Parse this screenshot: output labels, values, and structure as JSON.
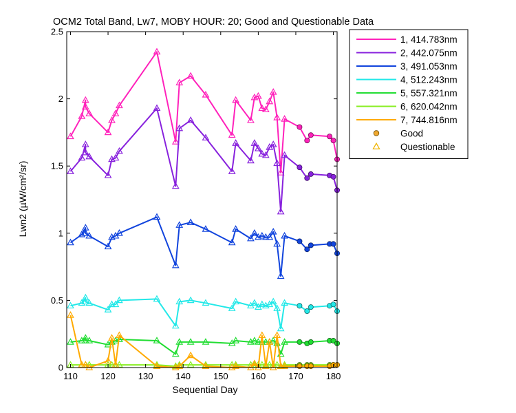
{
  "chart_data": {
    "type": "line",
    "title": "OCM2 Total Band, Lw7, MOBY HOUR: 20;  Good and Questionable Data",
    "xlabel": "Sequential Day",
    "ylabel": "Lwn2 (µW/cm²/sr)",
    "xlim": [
      109,
      181
    ],
    "ylim": [
      0,
      2.5
    ],
    "xticks": [
      110,
      120,
      130,
      140,
      150,
      160,
      170,
      180
    ],
    "yticks": [
      0,
      0.5,
      1,
      1.5,
      2,
      2.5
    ],
    "grid": false,
    "legend_position": "outside-top-right",
    "marker_legend": [
      {
        "label": "Good",
        "marker": "circle",
        "color": "#f0a830"
      },
      {
        "label": "Questionable",
        "marker": "triangle",
        "color": "#f0b400"
      }
    ],
    "series": [
      {
        "name": "1, 414.783nm",
        "color": "#ff22bb",
        "x": [
          110,
          113,
          114,
          114,
          115,
          120,
          121,
          122,
          123,
          133,
          138,
          139,
          142,
          146,
          153,
          154,
          158,
          159,
          160,
          161,
          162,
          163,
          164,
          165,
          166,
          167,
          171,
          173,
          174,
          179,
          180,
          181
        ],
        "y": [
          1.72,
          1.87,
          1.99,
          1.94,
          1.89,
          1.75,
          1.84,
          1.89,
          1.95,
          2.35,
          1.68,
          2.12,
          2.17,
          2.03,
          1.73,
          1.99,
          1.84,
          2.01,
          2.02,
          1.93,
          1.92,
          1.98,
          2.05,
          1.86,
          1.45,
          1.85,
          1.79,
          1.69,
          1.73,
          1.72,
          1.69,
          1.55
        ],
        "q": [
          1,
          1,
          1,
          1,
          1,
          1,
          1,
          1,
          1,
          1,
          1,
          1,
          1,
          1,
          1,
          1,
          1,
          1,
          1,
          1,
          1,
          1,
          1,
          1,
          1,
          1,
          0,
          0,
          0,
          0,
          0,
          0
        ]
      },
      {
        "name": "2, 442.075nm",
        "color": "#8822dd",
        "x": [
          110,
          113,
          114,
          114,
          115,
          120,
          121,
          122,
          123,
          133,
          138,
          139,
          142,
          146,
          153,
          154,
          158,
          159,
          160,
          161,
          162,
          163,
          164,
          165,
          166,
          167,
          171,
          173,
          174,
          179,
          180,
          181
        ],
        "y": [
          1.46,
          1.56,
          1.66,
          1.6,
          1.57,
          1.43,
          1.55,
          1.56,
          1.61,
          1.93,
          1.35,
          1.78,
          1.84,
          1.71,
          1.46,
          1.67,
          1.54,
          1.67,
          1.63,
          1.59,
          1.58,
          1.64,
          1.66,
          1.52,
          1.16,
          1.58,
          1.49,
          1.41,
          1.44,
          1.43,
          1.42,
          1.32
        ],
        "q": [
          1,
          1,
          1,
          1,
          1,
          1,
          1,
          1,
          1,
          1,
          1,
          1,
          1,
          1,
          1,
          1,
          1,
          1,
          1,
          1,
          1,
          1,
          1,
          1,
          1,
          1,
          0,
          0,
          0,
          0,
          0,
          0
        ]
      },
      {
        "name": "3, 491.053nm",
        "color": "#1144dd",
        "x": [
          110,
          113,
          114,
          114,
          115,
          120,
          121,
          122,
          123,
          133,
          138,
          139,
          142,
          146,
          153,
          154,
          158,
          159,
          160,
          161,
          162,
          163,
          164,
          165,
          166,
          167,
          171,
          173,
          174,
          179,
          180,
          181
        ],
        "y": [
          0.93,
          0.99,
          1.04,
          1.0,
          0.98,
          0.9,
          0.97,
          0.98,
          1.0,
          1.12,
          0.76,
          1.06,
          1.08,
          1.03,
          0.93,
          1.03,
          0.96,
          1.0,
          0.97,
          0.98,
          0.97,
          0.97,
          1.01,
          0.92,
          0.68,
          0.98,
          0.94,
          0.88,
          0.91,
          0.92,
          0.92,
          0.85
        ],
        "q": [
          1,
          1,
          1,
          1,
          1,
          1,
          1,
          1,
          1,
          1,
          1,
          1,
          1,
          1,
          1,
          1,
          1,
          1,
          1,
          1,
          1,
          1,
          1,
          1,
          1,
          1,
          0,
          0,
          0,
          0,
          0,
          0
        ]
      },
      {
        "name": "4, 512.243nm",
        "color": "#22e8e8",
        "x": [
          110,
          113,
          114,
          114,
          115,
          120,
          121,
          122,
          123,
          133,
          138,
          139,
          142,
          146,
          153,
          154,
          158,
          159,
          160,
          161,
          162,
          163,
          164,
          165,
          166,
          167,
          171,
          173,
          174,
          179,
          180,
          181
        ],
        "y": [
          0.46,
          0.48,
          0.52,
          0.49,
          0.48,
          0.43,
          0.47,
          0.47,
          0.5,
          0.51,
          0.31,
          0.49,
          0.5,
          0.48,
          0.44,
          0.49,
          0.46,
          0.48,
          0.45,
          0.47,
          0.46,
          0.47,
          0.49,
          0.44,
          0.29,
          0.48,
          0.46,
          0.42,
          0.45,
          0.46,
          0.47,
          0.42
        ],
        "q": [
          1,
          1,
          1,
          1,
          1,
          1,
          1,
          1,
          1,
          1,
          1,
          1,
          1,
          1,
          1,
          1,
          1,
          1,
          1,
          1,
          1,
          1,
          1,
          1,
          1,
          1,
          0,
          0,
          0,
          0,
          0,
          0
        ]
      },
      {
        "name": "5, 557.321nm",
        "color": "#22dd33",
        "x": [
          110,
          113,
          114,
          114,
          115,
          120,
          121,
          122,
          123,
          133,
          138,
          139,
          142,
          146,
          153,
          154,
          158,
          159,
          160,
          161,
          162,
          163,
          164,
          165,
          166,
          167,
          171,
          173,
          174,
          179,
          180,
          181
        ],
        "y": [
          0.19,
          0.2,
          0.22,
          0.2,
          0.2,
          0.17,
          0.19,
          0.2,
          0.21,
          0.2,
          0.1,
          0.19,
          0.19,
          0.19,
          0.18,
          0.2,
          0.19,
          0.2,
          0.19,
          0.19,
          0.19,
          0.19,
          0.2,
          0.18,
          0.1,
          0.19,
          0.19,
          0.18,
          0.19,
          0.2,
          0.2,
          0.18
        ],
        "q": [
          1,
          1,
          1,
          1,
          1,
          1,
          1,
          1,
          1,
          1,
          1,
          1,
          1,
          1,
          1,
          1,
          1,
          1,
          1,
          1,
          1,
          1,
          1,
          1,
          1,
          1,
          0,
          0,
          0,
          0,
          0,
          0
        ]
      },
      {
        "name": "6, 620.042nm",
        "color": "#88ee22",
        "x": [
          110,
          113,
          114,
          114,
          115,
          120,
          121,
          122,
          123,
          133,
          138,
          139,
          142,
          146,
          153,
          154,
          158,
          159,
          160,
          161,
          162,
          163,
          164,
          165,
          166,
          167,
          171,
          173,
          174,
          179,
          180,
          181
        ],
        "y": [
          0.02,
          0.02,
          0.02,
          0.02,
          0.02,
          0.02,
          0.02,
          0.02,
          0.02,
          0.02,
          0.01,
          0.02,
          0.02,
          0.02,
          0.02,
          0.02,
          0.02,
          0.02,
          0.02,
          0.02,
          0.02,
          0.02,
          0.02,
          0.02,
          0.01,
          0.02,
          0.02,
          0.02,
          0.02,
          0.02,
          0.02,
          0.02
        ],
        "q": [
          1,
          1,
          1,
          1,
          1,
          1,
          1,
          1,
          1,
          1,
          1,
          1,
          1,
          1,
          1,
          1,
          1,
          1,
          1,
          1,
          1,
          1,
          1,
          1,
          1,
          1,
          0,
          0,
          0,
          0,
          0,
          0
        ]
      },
      {
        "name": "7, 744.816nm",
        "color": "#ffaa00",
        "x": [
          110,
          113,
          114,
          115,
          120,
          121,
          122,
          123,
          133,
          138,
          139,
          142,
          146,
          153,
          154,
          158,
          159,
          160,
          161,
          162,
          163,
          164,
          165,
          166,
          167,
          171,
          173,
          174,
          179,
          180,
          181
        ],
        "y": [
          0.39,
          0.02,
          0.02,
          0.0,
          0.05,
          0.22,
          0.02,
          0.24,
          0.01,
          0.0,
          0.01,
          0.09,
          0.01,
          0.0,
          0.01,
          0.0,
          0.03,
          0.0,
          0.24,
          0.01,
          0.19,
          0.0,
          0.24,
          0.01,
          0.01,
          0.01,
          0.01,
          0.01,
          0.01,
          0.02,
          0.02
        ],
        "q": [
          1,
          1,
          1,
          1,
          1,
          1,
          1,
          1,
          1,
          1,
          1,
          1,
          1,
          1,
          1,
          1,
          1,
          1,
          1,
          1,
          1,
          1,
          1,
          1,
          1,
          0,
          0,
          0,
          0,
          0,
          0
        ]
      }
    ]
  }
}
